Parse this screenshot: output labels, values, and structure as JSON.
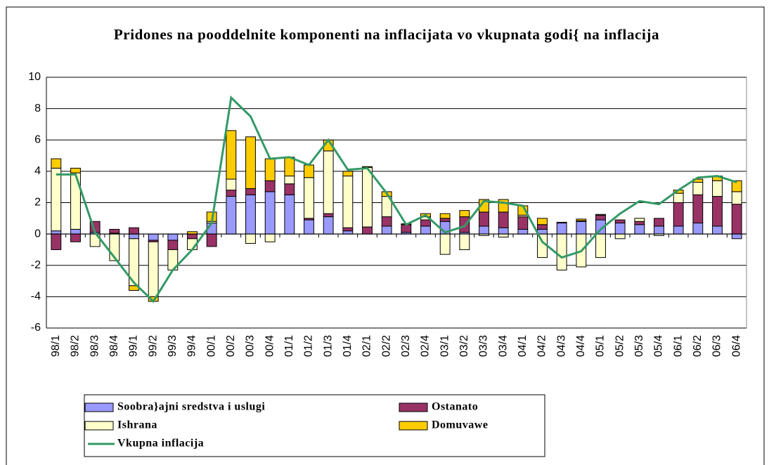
{
  "chart_data": {
    "type": "bar",
    "stacked": true,
    "title": "Pridones na pooddelnite komponenti na inflacijata vo vkupnata godi{ na inflacija",
    "categories": [
      "98/1",
      "98/2",
      "98/3",
      "98/4",
      "99/1",
      "99/2",
      "99/3",
      "99/4",
      "00/1",
      "00/2",
      "00/3",
      "00/4",
      "01/1",
      "01/2",
      "01/3",
      "01/4",
      "02/1",
      "02/2",
      "02/3",
      "02/4",
      "03/1",
      "03/2",
      "03/3",
      "03/4",
      "04/1",
      "04/2",
      "04/3",
      "04/4",
      "05/1",
      "05/2",
      "05/3",
      "05/4",
      "06/1",
      "06/2",
      "06/3",
      "06/4"
    ],
    "series": [
      {
        "name": "Soobra}ajni sredstva i uslugi",
        "type": "bar",
        "color": "#9999ff",
        "values": [
          0.2,
          0.3,
          0.1,
          0.05,
          -0.3,
          -0.4,
          -0.4,
          0,
          0.7,
          2.4,
          2.5,
          2.7,
          2.5,
          0.9,
          1.1,
          0.2,
          0,
          0.5,
          0.1,
          0.5,
          0.8,
          0.1,
          0.5,
          0.4,
          0.3,
          0.3,
          0.7,
          0.8,
          0.9,
          0.7,
          0.6,
          0.5,
          0.5,
          0.7,
          0.5,
          -0.3
        ]
      },
      {
        "name": "Ostanato",
        "type": "bar",
        "color": "#993366",
        "values": [
          -1.0,
          -0.5,
          0.7,
          0.25,
          0.4,
          -0.1,
          -0.6,
          -0.3,
          -0.8,
          0.4,
          0.4,
          0.7,
          0.7,
          0.1,
          0.2,
          0.2,
          0.45,
          0.6,
          0.5,
          0.4,
          0.2,
          1.0,
          0.9,
          1.0,
          0.8,
          0.3,
          0.05,
          0.05,
          0.3,
          0.2,
          0.2,
          0.5,
          1.5,
          1.8,
          1.9,
          1.9
        ]
      },
      {
        "name": "Ishrana",
        "type": "bar",
        "color": "#ffffcc",
        "values": [
          4.0,
          3.6,
          -0.8,
          -1.7,
          -3.0,
          -3.5,
          -1.3,
          -0.7,
          0.1,
          0.7,
          -0.6,
          -0.5,
          0.5,
          2.6,
          4.0,
          3.3,
          3.8,
          1.3,
          0,
          0.2,
          -1.3,
          -1.0,
          -0.1,
          -0.2,
          0.1,
          -1.5,
          -2.3,
          -2.1,
          -1.5,
          -0.3,
          0.2,
          -0.1,
          0.6,
          0.8,
          1.0,
          0.8
        ]
      },
      {
        "name": "Domuvawe",
        "type": "bar",
        "color": "#ffcc00",
        "values": [
          0.6,
          0.3,
          0,
          0,
          -0.3,
          -0.3,
          0,
          0.15,
          0.6,
          3.1,
          3.3,
          1.4,
          1.2,
          0.8,
          0.7,
          0.3,
          0.05,
          0.3,
          0.05,
          0.2,
          0.3,
          0.4,
          0.8,
          0.8,
          0.6,
          0.4,
          0,
          0.1,
          0.05,
          0,
          0,
          0,
          0.2,
          0.2,
          0.3,
          0.7
        ]
      },
      {
        "name": "Vkupna inflacija",
        "type": "line",
        "color": "#339966",
        "values": [
          3.8,
          3.8,
          0.1,
          -1.5,
          -3.1,
          -4.3,
          -2.3,
          -1.0,
          0.7,
          8.7,
          7.5,
          4.8,
          4.9,
          4.4,
          6.0,
          4.1,
          4.2,
          2.6,
          0.6,
          1.2,
          0.1,
          0.5,
          2.1,
          2.0,
          1.8,
          -0.5,
          -1.5,
          -1.1,
          0.3,
          1.3,
          2.1,
          1.9,
          2.8,
          3.6,
          3.7,
          3.3
        ]
      }
    ],
    "ylim": [
      -6,
      10
    ],
    "yticks": [
      -6,
      -4,
      -2,
      0,
      2,
      4,
      6,
      8,
      10
    ],
    "grid": true,
    "legend": "bottom"
  }
}
